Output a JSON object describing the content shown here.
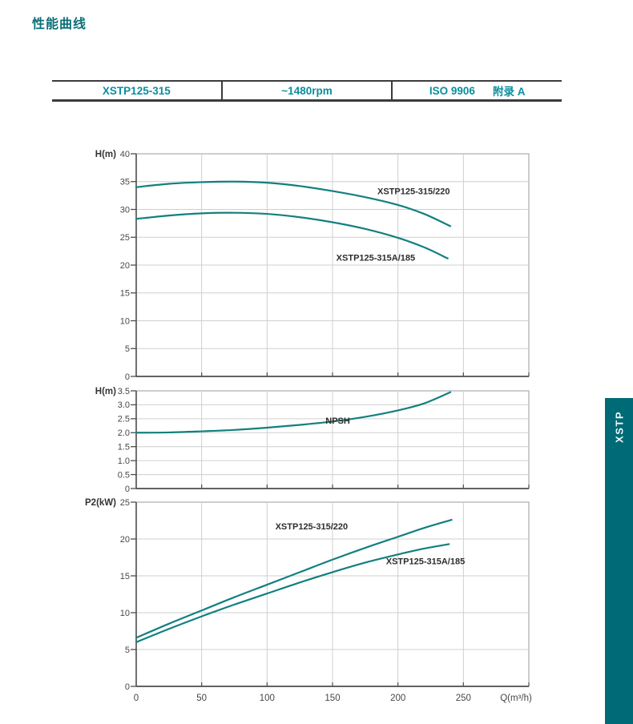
{
  "page_title": "性能曲线",
  "header_table": {
    "model": "XSTP125-315",
    "speed": "~1480rpm",
    "standard_code": "ISO 9906",
    "standard_appendix": "附录 A"
  },
  "side_tab": {
    "label": "XSTP"
  },
  "colors": {
    "title_teal": "#0c7078",
    "table_text_teal": "#0a8e9e",
    "curve": "#12807f",
    "grid": "#cfcfcf",
    "border": "#9b9b9b",
    "axis": "#4d4d4d",
    "tick_text": "#474747",
    "curve_label_text": "#2d2d2d",
    "tab_background": "#006a76"
  },
  "x_axis": {
    "label": "Q(m³/h)",
    "min": 0,
    "max": 300,
    "tick_step": 50,
    "labeled_ticks": [
      0,
      50,
      100,
      150,
      200,
      250
    ]
  },
  "chart_data": [
    {
      "id": "head",
      "type": "line",
      "title": "Head curves",
      "ylabel": "H(m)",
      "ylim": [
        0,
        40
      ],
      "ytick_step": 5,
      "ytick_decimals": 0,
      "grid": true,
      "series": [
        {
          "name": "XSTP125-315/220",
          "points": [
            [
              0,
              34.0
            ],
            [
              25,
              34.6
            ],
            [
              50,
              34.9
            ],
            [
              75,
              35.0
            ],
            [
              100,
              34.8
            ],
            [
              125,
              34.2
            ],
            [
              150,
              33.3
            ],
            [
              175,
              32.2
            ],
            [
              200,
              30.8
            ],
            [
              220,
              29.2
            ],
            [
              240,
              27.0
            ]
          ],
          "label_at": {
            "x": 212,
            "y": 32.7
          }
        },
        {
          "name": "XSTP125-315A/185",
          "points": [
            [
              0,
              28.3
            ],
            [
              25,
              28.9
            ],
            [
              50,
              29.3
            ],
            [
              75,
              29.4
            ],
            [
              100,
              29.2
            ],
            [
              125,
              28.6
            ],
            [
              150,
              27.7
            ],
            [
              175,
              26.5
            ],
            [
              200,
              24.9
            ],
            [
              220,
              23.2
            ],
            [
              238,
              21.2
            ]
          ],
          "label_at": {
            "x": 183,
            "y": 20.8
          }
        }
      ]
    },
    {
      "id": "npsh",
      "type": "line",
      "title": "NPSH curve",
      "ylabel": "H(m)",
      "ylim": [
        0,
        3.5
      ],
      "ytick_step": 0.5,
      "ytick_decimals": 1,
      "grid": true,
      "series": [
        {
          "name": "NPSH",
          "points": [
            [
              0,
              2.0
            ],
            [
              25,
              2.01
            ],
            [
              50,
              2.05
            ],
            [
              75,
              2.1
            ],
            [
              100,
              2.18
            ],
            [
              125,
              2.28
            ],
            [
              150,
              2.4
            ],
            [
              175,
              2.57
            ],
            [
              200,
              2.8
            ],
            [
              220,
              3.05
            ],
            [
              240,
              3.45
            ]
          ],
          "label_at": {
            "x": 154,
            "y": 2.33
          }
        }
      ]
    },
    {
      "id": "power",
      "type": "line",
      "title": "Shaft power curves",
      "ylabel": "P2(kW)",
      "ylim": [
        0,
        25
      ],
      "ytick_step": 5,
      "ytick_decimals": 0,
      "grid": true,
      "series": [
        {
          "name": "XSTP125-315/220",
          "points": [
            [
              0,
              6.6
            ],
            [
              25,
              8.5
            ],
            [
              50,
              10.3
            ],
            [
              75,
              12.1
            ],
            [
              100,
              13.8
            ],
            [
              125,
              15.5
            ],
            [
              150,
              17.2
            ],
            [
              175,
              18.8
            ],
            [
              200,
              20.3
            ],
            [
              220,
              21.5
            ],
            [
              241,
              22.6
            ]
          ],
          "label_at": {
            "x": 134,
            "y": 21.3
          }
        },
        {
          "name": "XSTP125-315A/185",
          "points": [
            [
              0,
              6.0
            ],
            [
              25,
              7.8
            ],
            [
              50,
              9.5
            ],
            [
              75,
              11.1
            ],
            [
              100,
              12.6
            ],
            [
              125,
              14.1
            ],
            [
              150,
              15.5
            ],
            [
              175,
              16.8
            ],
            [
              200,
              17.9
            ],
            [
              220,
              18.7
            ],
            [
              239,
              19.3
            ]
          ],
          "label_at": {
            "x": 221,
            "y": 16.6
          }
        }
      ]
    }
  ]
}
